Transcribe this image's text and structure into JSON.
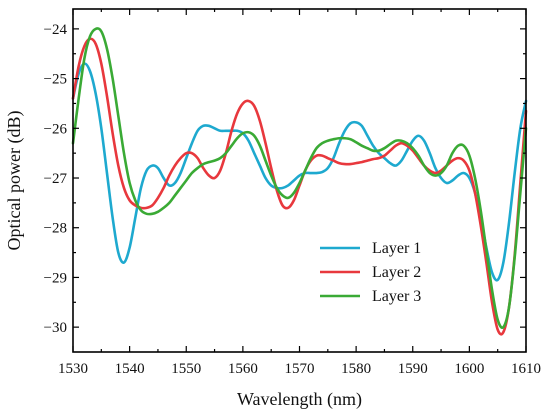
{
  "chart_data": {
    "type": "line",
    "title": "",
    "xlabel": "Wavelength (nm)",
    "ylabel": "Optical power (dB)",
    "xlim": [
      1530,
      1610
    ],
    "ylim": [
      -30.5,
      -23.6
    ],
    "x_ticks": [
      1530,
      1540,
      1550,
      1560,
      1570,
      1580,
      1590,
      1600,
      1610
    ],
    "y_ticks": [
      -30,
      -29,
      -28,
      -27,
      -26,
      -25,
      -24
    ],
    "y_tick_labels": [
      "−30",
      "−29",
      "−28",
      "−27",
      "−26",
      "−25",
      "−24"
    ],
    "grid": false,
    "legend_position": "lower-right",
    "series": [
      {
        "name": "Layer 1",
        "color": "#1ea9cf",
        "x": [
          1530,
          1531,
          1532,
          1533,
          1534,
          1535,
          1536,
          1537,
          1538,
          1539,
          1540,
          1541,
          1542,
          1543,
          1544,
          1545,
          1546,
          1547,
          1548,
          1549,
          1550,
          1551,
          1552,
          1553,
          1554,
          1555,
          1556,
          1557,
          1558,
          1559,
          1560,
          1561,
          1562,
          1563,
          1564,
          1565,
          1566,
          1567,
          1568,
          1569,
          1570,
          1571,
          1572,
          1573,
          1574,
          1575,
          1576,
          1577,
          1578,
          1579,
          1580,
          1581,
          1582,
          1583,
          1584,
          1585,
          1586,
          1587,
          1588,
          1589,
          1590,
          1591,
          1592,
          1593,
          1594,
          1595,
          1596,
          1597,
          1598,
          1599,
          1600,
          1601,
          1602,
          1603,
          1604,
          1605,
          1606,
          1607,
          1608,
          1609,
          1610
        ],
        "y": [
          -25.4,
          -24.9,
          -24.7,
          -24.85,
          -25.3,
          -26.0,
          -26.9,
          -27.8,
          -28.5,
          -28.7,
          -28.4,
          -27.8,
          -27.2,
          -26.85,
          -26.75,
          -26.8,
          -27.0,
          -27.15,
          -27.1,
          -26.9,
          -26.6,
          -26.3,
          -26.05,
          -25.95,
          -25.95,
          -26.0,
          -26.05,
          -26.05,
          -26.05,
          -26.05,
          -26.1,
          -26.25,
          -26.5,
          -26.75,
          -27.0,
          -27.15,
          -27.2,
          -27.2,
          -27.15,
          -27.05,
          -26.95,
          -26.9,
          -26.9,
          -26.9,
          -26.88,
          -26.8,
          -26.6,
          -26.3,
          -26.05,
          -25.9,
          -25.88,
          -25.95,
          -26.15,
          -26.35,
          -26.5,
          -26.6,
          -26.7,
          -26.75,
          -26.65,
          -26.45,
          -26.25,
          -26.15,
          -26.25,
          -26.5,
          -26.8,
          -27.0,
          -27.1,
          -27.05,
          -26.95,
          -26.9,
          -27.0,
          -27.3,
          -27.8,
          -28.4,
          -28.9,
          -29.05,
          -28.7,
          -27.9,
          -26.9,
          -26.0,
          -25.45
        ]
      },
      {
        "name": "Layer 2",
        "color": "#e8383d",
        "x": [
          1530,
          1531,
          1532,
          1533,
          1534,
          1535,
          1536,
          1537,
          1538,
          1539,
          1540,
          1541,
          1542,
          1543,
          1544,
          1545,
          1546,
          1547,
          1548,
          1549,
          1550,
          1551,
          1552,
          1553,
          1554,
          1555,
          1556,
          1557,
          1558,
          1559,
          1560,
          1561,
          1562,
          1563,
          1564,
          1565,
          1566,
          1567,
          1568,
          1569,
          1570,
          1571,
          1572,
          1573,
          1574,
          1575,
          1576,
          1577,
          1578,
          1579,
          1580,
          1581,
          1582,
          1583,
          1584,
          1585,
          1586,
          1587,
          1588,
          1589,
          1590,
          1591,
          1592,
          1593,
          1594,
          1595,
          1596,
          1597,
          1598,
          1599,
          1600,
          1601,
          1602,
          1603,
          1604,
          1605,
          1606,
          1607,
          1608,
          1609,
          1610
        ],
        "y": [
          -25.4,
          -24.75,
          -24.35,
          -24.2,
          -24.3,
          -24.7,
          -25.35,
          -26.1,
          -26.75,
          -27.2,
          -27.45,
          -27.55,
          -27.6,
          -27.6,
          -27.55,
          -27.4,
          -27.2,
          -26.95,
          -26.75,
          -26.6,
          -26.5,
          -26.5,
          -26.6,
          -26.8,
          -26.95,
          -27.0,
          -26.85,
          -26.5,
          -26.05,
          -25.7,
          -25.5,
          -25.45,
          -25.55,
          -25.85,
          -26.3,
          -26.8,
          -27.25,
          -27.55,
          -27.6,
          -27.45,
          -27.15,
          -26.85,
          -26.65,
          -26.55,
          -26.55,
          -26.6,
          -26.65,
          -26.7,
          -26.72,
          -26.72,
          -26.7,
          -26.68,
          -26.65,
          -26.62,
          -26.6,
          -26.55,
          -26.45,
          -26.35,
          -26.3,
          -26.35,
          -26.45,
          -26.6,
          -26.75,
          -26.85,
          -26.9,
          -26.85,
          -26.75,
          -26.65,
          -26.6,
          -26.65,
          -26.85,
          -27.3,
          -27.95,
          -28.7,
          -29.5,
          -30.05,
          -30.1,
          -29.6,
          -28.55,
          -27.1,
          -25.65
        ]
      },
      {
        "name": "Layer 3",
        "color": "#3aaa35",
        "x": [
          1530,
          1531,
          1532,
          1533,
          1534,
          1535,
          1536,
          1537,
          1538,
          1539,
          1540,
          1541,
          1542,
          1543,
          1544,
          1545,
          1546,
          1547,
          1548,
          1549,
          1550,
          1551,
          1552,
          1553,
          1554,
          1555,
          1556,
          1557,
          1558,
          1559,
          1560,
          1561,
          1562,
          1563,
          1564,
          1565,
          1566,
          1567,
          1568,
          1569,
          1570,
          1571,
          1572,
          1573,
          1574,
          1575,
          1576,
          1577,
          1578,
          1579,
          1580,
          1581,
          1582,
          1583,
          1584,
          1585,
          1586,
          1587,
          1588,
          1589,
          1590,
          1591,
          1592,
          1593,
          1594,
          1595,
          1596,
          1597,
          1598,
          1599,
          1600,
          1601,
          1602,
          1603,
          1604,
          1605,
          1606,
          1607,
          1608,
          1609,
          1610
        ],
        "y": [
          -26.3,
          -25.4,
          -24.6,
          -24.15,
          -24.0,
          -24.05,
          -24.4,
          -25.0,
          -25.75,
          -26.5,
          -27.1,
          -27.45,
          -27.65,
          -27.72,
          -27.72,
          -27.68,
          -27.6,
          -27.5,
          -27.35,
          -27.2,
          -27.05,
          -26.9,
          -26.8,
          -26.72,
          -26.68,
          -26.65,
          -26.6,
          -26.5,
          -26.35,
          -26.2,
          -26.1,
          -26.08,
          -26.15,
          -26.35,
          -26.65,
          -26.95,
          -27.2,
          -27.35,
          -27.4,
          -27.3,
          -27.1,
          -26.85,
          -26.6,
          -26.4,
          -26.3,
          -26.25,
          -26.22,
          -26.2,
          -26.2,
          -26.22,
          -26.28,
          -26.35,
          -26.4,
          -26.45,
          -26.45,
          -26.4,
          -26.32,
          -26.25,
          -26.25,
          -26.3,
          -26.4,
          -26.55,
          -26.75,
          -26.9,
          -26.95,
          -26.9,
          -26.75,
          -26.5,
          -26.35,
          -26.35,
          -26.55,
          -27.0,
          -27.65,
          -28.45,
          -29.25,
          -29.85,
          -30.0,
          -29.6,
          -28.6,
          -27.3,
          -26.0
        ]
      }
    ]
  }
}
